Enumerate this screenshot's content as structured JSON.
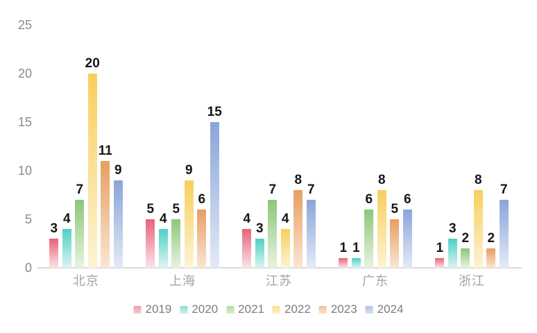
{
  "chart_data": {
    "type": "bar",
    "title": "",
    "categories": [
      "北京",
      "上海",
      "江苏",
      "广东",
      "浙江"
    ],
    "series": [
      {
        "name": "2019",
        "values": [
          3,
          5,
          4,
          1,
          1
        ],
        "color_top": "#e76379",
        "color_bottom": "#fbe4e8",
        "legend_top": "#f09cab",
        "legend_bottom": "#f7c8d1"
      },
      {
        "name": "2020",
        "values": [
          4,
          4,
          3,
          1,
          3
        ],
        "color_top": "#4fd0c5",
        "color_bottom": "#dcf4f1",
        "legend_top": "#8eddd4",
        "legend_bottom": "#c8efea"
      },
      {
        "name": "2021",
        "values": [
          7,
          5,
          7,
          6,
          2
        ],
        "color_top": "#8bc779",
        "color_bottom": "#e7f4e0",
        "legend_top": "#b2dba3",
        "legend_bottom": "#d9edcf"
      },
      {
        "name": "2022",
        "values": [
          20,
          9,
          4,
          8,
          8
        ],
        "color_top": "#f8cf5c",
        "color_bottom": "#fdf3d5",
        "legend_top": "#fbdf88",
        "legend_bottom": "#fdf0c3"
      },
      {
        "name": "2023",
        "values": [
          11,
          6,
          8,
          5,
          2
        ],
        "color_top": "#e79e62",
        "color_bottom": "#fae6d4",
        "legend_top": "#f2c294",
        "legend_bottom": "#f9e2ca"
      },
      {
        "name": "2024",
        "values": [
          9,
          15,
          7,
          6,
          7
        ],
        "color_top": "#8aa5d9",
        "color_bottom": "#e4eaf6",
        "legend_top": "#b1c1e6",
        "legend_bottom": "#d8e0f2"
      }
    ],
    "y_ticks": [
      0,
      5,
      10,
      15,
      20,
      25
    ],
    "ylim": [
      0,
      25
    ],
    "xlabel": "",
    "ylabel": "",
    "grid": false,
    "legend_position": "bottom",
    "value_labels": true
  },
  "colors": {
    "background": "#ffffff",
    "axis_line": "#d9d9d9",
    "tick_label": "#8a8a8a",
    "category_label": "#a3a3a3",
    "legend_label": "#7d7d7d",
    "value_label": "#161616"
  }
}
